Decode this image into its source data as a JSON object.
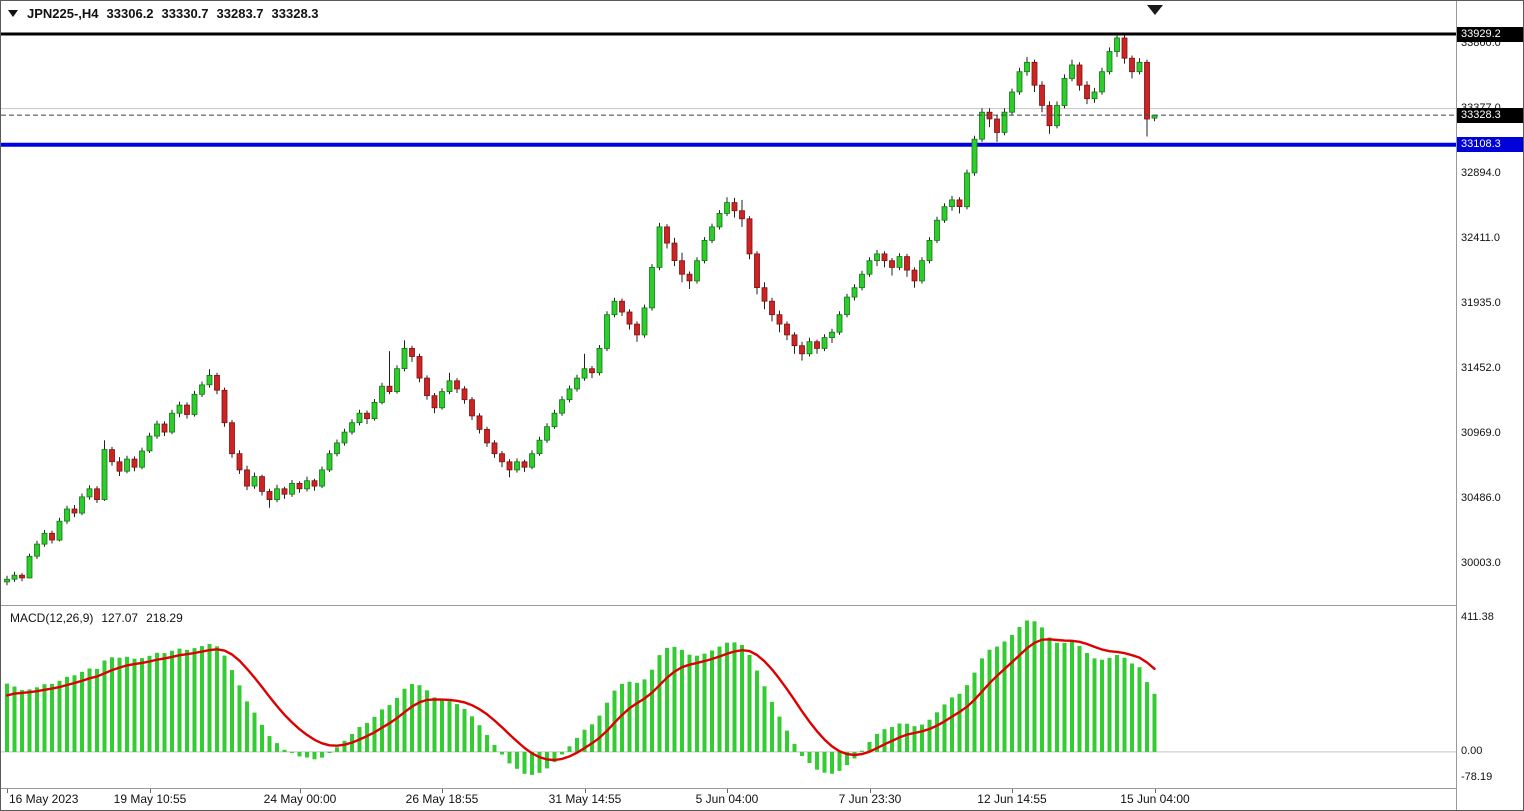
{
  "header": {
    "symbol_period": "JPN225-,H4",
    "open": "33306.2",
    "high": "33330.7",
    "low": "33283.7",
    "close": "33328.3"
  },
  "macd": {
    "label": "MACD(12,26,9)",
    "value": "127.07",
    "signal_value": "218.29",
    "range": [
      -110,
      442
    ],
    "axis_labels": [
      {
        "text": "411.38",
        "value": 411.38
      },
      {
        "text": "0.00",
        "value": 0
      },
      {
        "text": "-78.19",
        "value": -78.19
      }
    ]
  },
  "price_axis": {
    "grid_labels": [
      {
        "text": "33860.0",
        "price": 33860.0
      },
      {
        "text": "33377.0",
        "price": 33377.0
      },
      {
        "text": "32894.0",
        "price": 32894.0
      },
      {
        "text": "32411.0",
        "price": 32411.0
      },
      {
        "text": "31935.0",
        "price": 31935.0
      },
      {
        "text": "31452.0",
        "price": 31452.0
      },
      {
        "text": "30969.0",
        "price": 30969.0
      },
      {
        "text": "30486.0",
        "price": 30486.0
      },
      {
        "text": "30003.0",
        "price": 30003.0
      }
    ],
    "tags": [
      {
        "text": "33929.2",
        "price": 33929.2,
        "bg": "#000000"
      },
      {
        "text": "33328.3",
        "price": 33328.3,
        "bg": "#000000"
      },
      {
        "text": "33108.3",
        "price": 33108.3,
        "bg": "#0000d8"
      }
    ]
  },
  "overlays": {
    "black_line_price": 33929.2,
    "blue_line_price": 33108.3,
    "current_price": 33328.3,
    "faint_grid_price": 33377.0
  },
  "time_axis": {
    "labels": [
      {
        "text": "16 May 2023",
        "bar": 0
      },
      {
        "text": "19 May 10:55",
        "bar": 19
      },
      {
        "text": "24 May 00:00",
        "bar": 39
      },
      {
        "text": "26 May 18:55",
        "bar": 58
      },
      {
        "text": "31 May 14:55",
        "bar": 77
      },
      {
        "text": "5 Jun 04:00",
        "bar": 96
      },
      {
        "text": "7 Jun 23:30",
        "bar": 115
      },
      {
        "text": "12 Jun 14:55",
        "bar": 134
      },
      {
        "text": "15 Jun 04:00",
        "bar": 153
      }
    ]
  },
  "colors": {
    "bull": "#2ecc2e",
    "bull_border": "#0e7a0e",
    "bear": "#cc2424",
    "bear_border": "#801010",
    "wick": "#222222",
    "blue_line": "#0000e0",
    "black_line": "#000000",
    "grid_line": "#c4c4c4",
    "macd_hist": "#33cc33",
    "macd_signal": "#dd0000",
    "current_price_line": "#444444"
  },
  "chart_data": {
    "type": "candlestick",
    "symbol": "JPN225-",
    "timeframe": "H4",
    "price_range_visible": [
      29699,
      34174
    ],
    "macd_params": [
      12,
      26,
      9
    ],
    "indicator": "MACD histogram (green) with red signal line, values 127.07 / 218.29, visible scale -78.19 to 411.38",
    "candles": [
      [
        29870,
        29915,
        29845,
        29890
      ],
      [
        29890,
        29945,
        29870,
        29920
      ],
      [
        29920,
        29935,
        29875,
        29900
      ],
      [
        29900,
        30080,
        29895,
        30060
      ],
      [
        30060,
        30175,
        30040,
        30150
      ],
      [
        30150,
        30255,
        30130,
        30230
      ],
      [
        30230,
        30250,
        30155,
        30180
      ],
      [
        30180,
        30345,
        30170,
        30320
      ],
      [
        30320,
        30435,
        30300,
        30410
      ],
      [
        30410,
        30440,
        30350,
        30380
      ],
      [
        30380,
        30525,
        30365,
        30500
      ],
      [
        30500,
        30585,
        30480,
        30560
      ],
      [
        30560,
        30580,
        30455,
        30480
      ],
      [
        30480,
        30920,
        30470,
        30850
      ],
      [
        30850,
        30870,
        30730,
        30760
      ],
      [
        30760,
        30795,
        30655,
        30690
      ],
      [
        30690,
        30805,
        30675,
        30780
      ],
      [
        30780,
        30800,
        30690,
        30720
      ],
      [
        30720,
        30865,
        30705,
        30840
      ],
      [
        30840,
        30975,
        30825,
        30950
      ],
      [
        30950,
        31065,
        30930,
        31040
      ],
      [
        31040,
        31060,
        30950,
        30980
      ],
      [
        30980,
        31145,
        30965,
        31120
      ],
      [
        31120,
        31205,
        31090,
        31180
      ],
      [
        31180,
        31200,
        31080,
        31110
      ],
      [
        31110,
        31285,
        31095,
        31260
      ],
      [
        31260,
        31355,
        31240,
        31330
      ],
      [
        31330,
        31445,
        31310,
        31400
      ],
      [
        31400,
        31420,
        31260,
        31290
      ],
      [
        31290,
        31310,
        31020,
        31050
      ],
      [
        31050,
        31070,
        30790,
        30820
      ],
      [
        30820,
        30845,
        30670,
        30700
      ],
      [
        30700,
        30730,
        30550,
        30580
      ],
      [
        30580,
        30680,
        30560,
        30650
      ],
      [
        30650,
        30665,
        30510,
        30540
      ],
      [
        30540,
        30560,
        30420,
        30480
      ],
      [
        30480,
        30590,
        30460,
        30560
      ],
      [
        30560,
        30575,
        30485,
        30520
      ],
      [
        30520,
        30625,
        30500,
        30600
      ],
      [
        30600,
        30615,
        30530,
        30560
      ],
      [
        30560,
        30650,
        30540,
        30620
      ],
      [
        30620,
        30635,
        30545,
        30580
      ],
      [
        30580,
        30725,
        30565,
        30700
      ],
      [
        30700,
        30845,
        30685,
        30820
      ],
      [
        30820,
        30925,
        30800,
        30900
      ],
      [
        30900,
        31005,
        30880,
        30980
      ],
      [
        30980,
        31075,
        30960,
        31050
      ],
      [
        31050,
        31145,
        31030,
        31120
      ],
      [
        31120,
        31140,
        31040,
        31080
      ],
      [
        31080,
        31225,
        31065,
        31200
      ],
      [
        31200,
        31345,
        31185,
        31320
      ],
      [
        31320,
        31580,
        31260,
        31280
      ],
      [
        31280,
        31475,
        31265,
        31450
      ],
      [
        31450,
        31660,
        31430,
        31600
      ],
      [
        31600,
        31620,
        31500,
        31540
      ],
      [
        31540,
        31560,
        31350,
        31380
      ],
      [
        31380,
        31400,
        31220,
        31250
      ],
      [
        31250,
        31270,
        31120,
        31160
      ],
      [
        31160,
        31305,
        31145,
        31280
      ],
      [
        31280,
        31420,
        31260,
        31360
      ],
      [
        31360,
        31380,
        31270,
        31300
      ],
      [
        31300,
        31320,
        31190,
        31220
      ],
      [
        31220,
        31240,
        31070,
        31100
      ],
      [
        31100,
        31120,
        30970,
        31000
      ],
      [
        31000,
        31020,
        30870,
        30900
      ],
      [
        30900,
        30920,
        30790,
        30820
      ],
      [
        30820,
        30840,
        30720,
        30760
      ],
      [
        30760,
        30780,
        30645,
        30700
      ],
      [
        30700,
        30785,
        30680,
        30760
      ],
      [
        30760,
        30775,
        30685,
        30720
      ],
      [
        30720,
        30845,
        30705,
        30820
      ],
      [
        30820,
        30945,
        30805,
        30920
      ],
      [
        30920,
        31045,
        30900,
        31020
      ],
      [
        31020,
        31145,
        31005,
        31120
      ],
      [
        31120,
        31245,
        31100,
        31220
      ],
      [
        31220,
        31325,
        31200,
        31300
      ],
      [
        31300,
        31405,
        31280,
        31380
      ],
      [
        31380,
        31560,
        31360,
        31450
      ],
      [
        31450,
        31470,
        31380,
        31420
      ],
      [
        31420,
        31625,
        31400,
        31600
      ],
      [
        31600,
        31875,
        31580,
        31850
      ],
      [
        31850,
        31975,
        31830,
        31950
      ],
      [
        31950,
        31970,
        31840,
        31870
      ],
      [
        31870,
        31890,
        31740,
        31780
      ],
      [
        31780,
        31800,
        31650,
        31700
      ],
      [
        31700,
        31925,
        31680,
        31900
      ],
      [
        31900,
        32225,
        31880,
        32200
      ],
      [
        32200,
        32530,
        32180,
        32500
      ],
      [
        32500,
        32520,
        32340,
        32380
      ],
      [
        32380,
        32420,
        32210,
        32250
      ],
      [
        32250,
        32310,
        32090,
        32150
      ],
      [
        32150,
        32170,
        32040,
        32100
      ],
      [
        32100,
        32275,
        32080,
        32250
      ],
      [
        32250,
        32425,
        32230,
        32400
      ],
      [
        32400,
        32525,
        32380,
        32500
      ],
      [
        32500,
        32625,
        32480,
        32600
      ],
      [
        32600,
        32720,
        32580,
        32680
      ],
      [
        32680,
        32715,
        32570,
        32620
      ],
      [
        32620,
        32700,
        32500,
        32560
      ],
      [
        32560,
        32580,
        32260,
        32300
      ],
      [
        32300,
        32320,
        32000,
        32050
      ],
      [
        32050,
        32090,
        31890,
        31950
      ],
      [
        31950,
        31975,
        31800,
        31850
      ],
      [
        31850,
        31880,
        31720,
        31780
      ],
      [
        31780,
        31800,
        31660,
        31700
      ],
      [
        31700,
        31720,
        31560,
        31620
      ],
      [
        31620,
        31650,
        31510,
        31560
      ],
      [
        31560,
        31680,
        31540,
        31650
      ],
      [
        31650,
        31665,
        31560,
        31600
      ],
      [
        31600,
        31705,
        31580,
        31680
      ],
      [
        31680,
        31745,
        31640,
        31720
      ],
      [
        31720,
        31875,
        31700,
        31850
      ],
      [
        31850,
        32005,
        31830,
        31980
      ],
      [
        31980,
        32075,
        31955,
        32050
      ],
      [
        32050,
        32175,
        32030,
        32150
      ],
      [
        32150,
        32275,
        32130,
        32250
      ],
      [
        32250,
        32330,
        32210,
        32300
      ],
      [
        32300,
        32320,
        32200,
        32250
      ],
      [
        32250,
        32270,
        32140,
        32200
      ],
      [
        32200,
        32305,
        32180,
        32280
      ],
      [
        32280,
        32300,
        32130,
        32180
      ],
      [
        32180,
        32200,
        32050,
        32100
      ],
      [
        32100,
        32275,
        32080,
        32250
      ],
      [
        32250,
        32425,
        32230,
        32400
      ],
      [
        32400,
        32575,
        32380,
        32550
      ],
      [
        32550,
        32675,
        32530,
        32650
      ],
      [
        32650,
        32730,
        32620,
        32700
      ],
      [
        32700,
        32720,
        32600,
        32650
      ],
      [
        32650,
        32925,
        32630,
        32900
      ],
      [
        32900,
        33175,
        32880,
        33150
      ],
      [
        33150,
        33380,
        33130,
        33350
      ],
      [
        33350,
        33380,
        33240,
        33300
      ],
      [
        33300,
        33330,
        33130,
        33200
      ],
      [
        33200,
        33380,
        33180,
        33350
      ],
      [
        33350,
        33525,
        33330,
        33500
      ],
      [
        33500,
        33680,
        33480,
        33650
      ],
      [
        33650,
        33760,
        33620,
        33720
      ],
      [
        33720,
        33740,
        33500,
        33550
      ],
      [
        33550,
        33580,
        33350,
        33400
      ],
      [
        33400,
        33430,
        33190,
        33250
      ],
      [
        33250,
        33430,
        33230,
        33400
      ],
      [
        33400,
        33630,
        33380,
        33600
      ],
      [
        33600,
        33740,
        33580,
        33700
      ],
      [
        33700,
        33720,
        33510,
        33550
      ],
      [
        33550,
        33580,
        33410,
        33450
      ],
      [
        33450,
        33530,
        33420,
        33500
      ],
      [
        33500,
        33680,
        33480,
        33650
      ],
      [
        33650,
        33830,
        33630,
        33800
      ],
      [
        33800,
        33929.2,
        33760,
        33900
      ],
      [
        33900,
        33920,
        33710,
        33750
      ],
      [
        33750,
        33770,
        33600,
        33650
      ],
      [
        33650,
        33750,
        33630,
        33720
      ],
      [
        33720,
        33740,
        33170,
        33300
      ],
      [
        33306.2,
        33330.7,
        33283.7,
        33328.3
      ]
    ]
  }
}
